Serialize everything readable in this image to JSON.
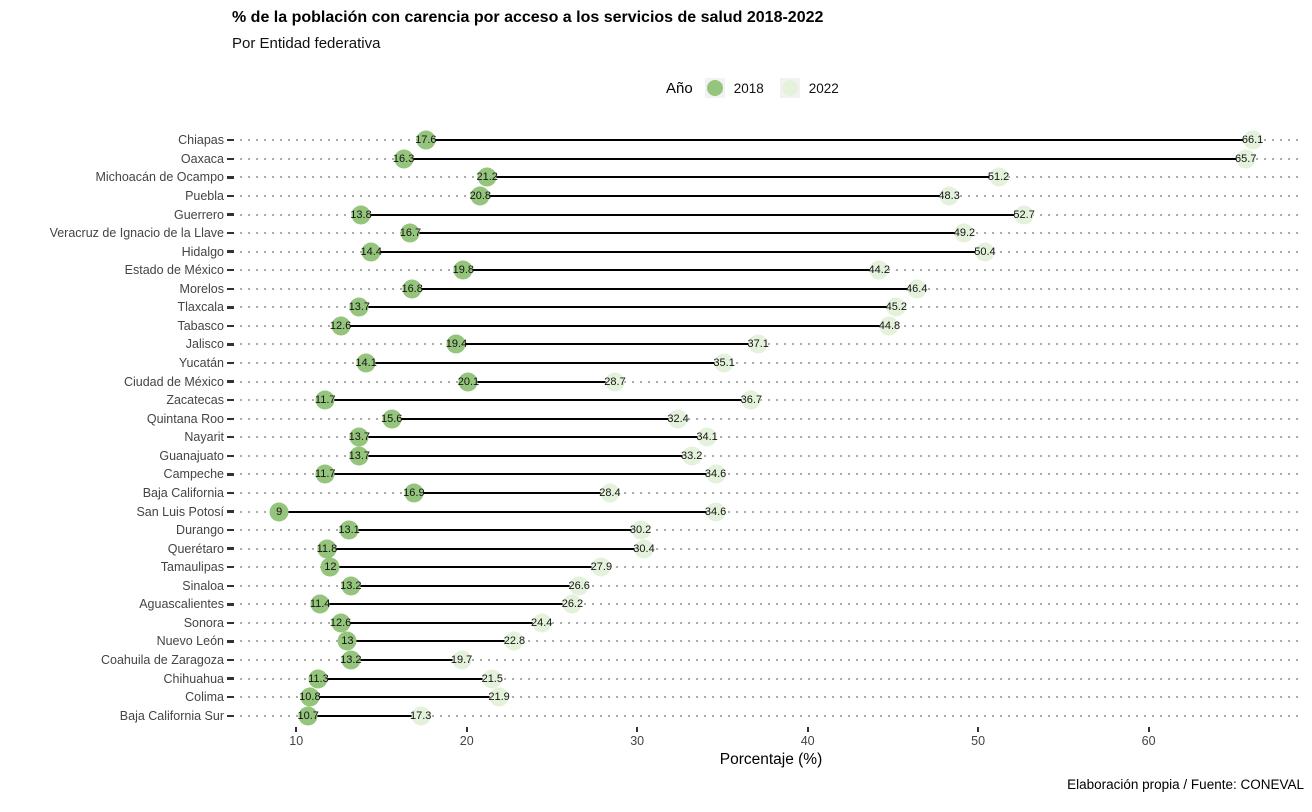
{
  "chart_data": {
    "type": "dumbbell",
    "title": "% de la población con carencia por acceso a los servicios de salud 2018-2022",
    "subtitle": "Por Entidad federativa",
    "legend_title": "Año",
    "legend_position": "top",
    "xlabel": "Porcentaje (%)",
    "x_ticks": [
      10,
      20,
      30,
      40,
      50,
      60
    ],
    "xlim": [
      6.7,
      69.0
    ],
    "grid": "horizontal-dotted",
    "connector_color": "#000000",
    "gridline_color": "#ababab",
    "caption": "Elaboración propia / Fuente: CONEVAL",
    "categories": [
      "Chiapas",
      "Oaxaca",
      "Michoacán de Ocampo",
      "Puebla",
      "Guerrero",
      "Veracruz de Ignacio de la Llave",
      "Hidalgo",
      "Estado de México",
      "Morelos",
      "Tlaxcala",
      "Tabasco",
      "Jalisco",
      "Yucatán",
      "Ciudad de México",
      "Zacatecas",
      "Quintana Roo",
      "Nayarit",
      "Guanajuato",
      "Campeche",
      "Baja California",
      "San Luis Potosí",
      "Durango",
      "Querétaro",
      "Tamaulipas",
      "Sinaloa",
      "Aguascalientes",
      "Sonora",
      "Nuevo León",
      "Coahuila de Zaragoza",
      "Chihuahua",
      "Colima",
      "Baja California Sur"
    ],
    "series": [
      {
        "name": "2018",
        "color": "#95c57c",
        "values": [
          17.6,
          16.3,
          21.2,
          20.8,
          13.8,
          16.7,
          14.4,
          19.8,
          16.8,
          13.7,
          12.6,
          19.4,
          14.1,
          20.1,
          11.7,
          15.6,
          13.7,
          13.7,
          11.7,
          16.9,
          9,
          13.1,
          11.8,
          12,
          13.2,
          11.4,
          12.6,
          13,
          13.2,
          11.3,
          10.8,
          10.7
        ]
      },
      {
        "name": "2022",
        "color": "#e4f2dc",
        "values": [
          66.1,
          65.7,
          51.2,
          48.3,
          52.7,
          49.2,
          50.4,
          44.2,
          46.4,
          45.2,
          44.8,
          37.1,
          35.1,
          28.7,
          36.7,
          32.4,
          34.1,
          33.2,
          34.6,
          28.4,
          34.6,
          30.2,
          30.4,
          27.9,
          26.6,
          26.2,
          24.4,
          22.8,
          19.7,
          21.5,
          21.9,
          17.3
        ]
      }
    ]
  }
}
